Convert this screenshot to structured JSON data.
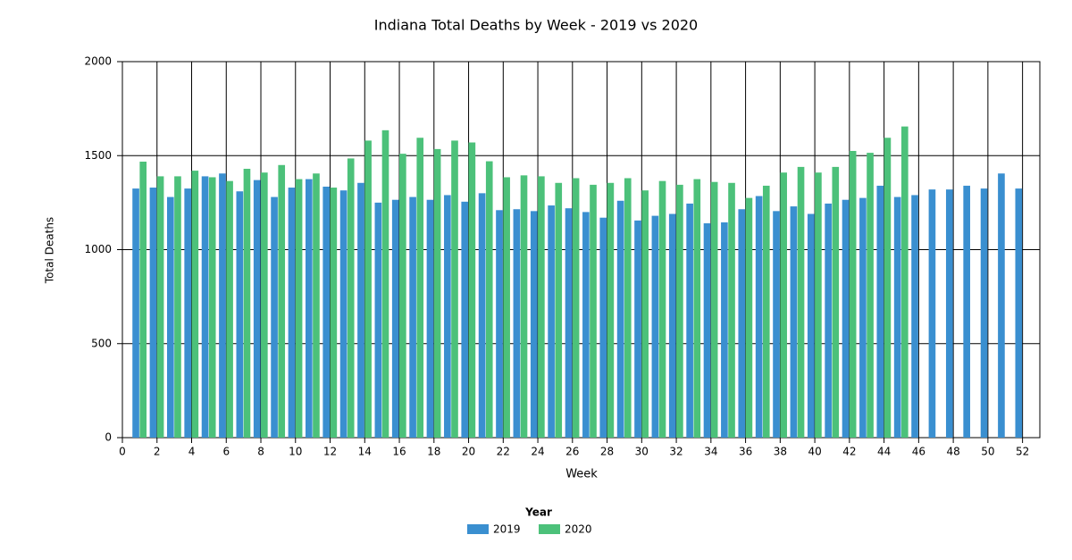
{
  "chart_data": {
    "type": "bar",
    "title": "Indiana Total Deaths by Week - 2019 vs 2020",
    "x_label": "Week",
    "y_label": "Total Deaths",
    "legend_title": "Year",
    "x": [
      1,
      2,
      3,
      4,
      5,
      6,
      7,
      8,
      9,
      10,
      11,
      12,
      13,
      14,
      15,
      16,
      17,
      18,
      19,
      20,
      21,
      22,
      23,
      24,
      25,
      26,
      27,
      28,
      29,
      30,
      31,
      32,
      33,
      34,
      35,
      36,
      37,
      38,
      39,
      40,
      41,
      42,
      43,
      44,
      45,
      46,
      47,
      48,
      49,
      50,
      51,
      52
    ],
    "series": [
      {
        "name": "2019",
        "color": "#3a8fd0",
        "values": [
          1325,
          1330,
          1280,
          1325,
          1390,
          1405,
          1310,
          1370,
          1280,
          1330,
          1375,
          1335,
          1315,
          1355,
          1250,
          1265,
          1280,
          1265,
          1290,
          1255,
          1300,
          1210,
          1215,
          1205,
          1235,
          1220,
          1200,
          1170,
          1260,
          1155,
          1180,
          1190,
          1245,
          1140,
          1145,
          1215,
          1285,
          1205,
          1230,
          1190,
          1245,
          1265,
          1275,
          1340,
          1280,
          1290,
          1320,
          1320,
          1340,
          1325,
          1405,
          1325
        ]
      },
      {
        "name": "2020",
        "color": "#4cc17a",
        "values": [
          1468,
          1390,
          1390,
          1420,
          1385,
          1365,
          1430,
          1410,
          1450,
          1375,
          1405,
          1330,
          1485,
          1580,
          1635,
          1510,
          1595,
          1535,
          1580,
          1570,
          1470,
          1385,
          1395,
          1390,
          1355,
          1380,
          1345,
          1355,
          1380,
          1315,
          1365,
          1345,
          1375,
          1360,
          1355,
          1275,
          1340,
          1410,
          1440,
          1410,
          1440,
          1525,
          1515,
          1595,
          1655,
          null,
          null,
          null,
          null,
          null,
          null,
          null
        ]
      }
    ],
    "xlim": [
      0,
      53
    ],
    "xticks": [
      0,
      2,
      4,
      6,
      8,
      10,
      12,
      14,
      16,
      18,
      20,
      22,
      24,
      26,
      28,
      30,
      32,
      34,
      36,
      38,
      40,
      42,
      44,
      46,
      48,
      50,
      52
    ],
    "ylim": [
      0,
      2000
    ],
    "yticks": [
      0,
      500,
      1000,
      1500,
      2000
    ],
    "grid": true,
    "legend": "bottom"
  }
}
